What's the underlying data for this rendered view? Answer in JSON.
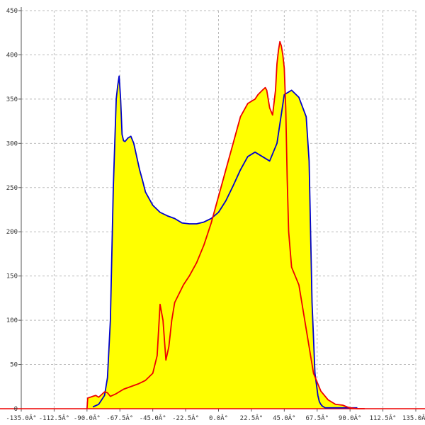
{
  "chart_data": {
    "type": "area",
    "title": "",
    "xlabel": "",
    "ylabel": "",
    "xlim": [
      -135,
      135
    ],
    "ylim": [
      0,
      450
    ],
    "grid": true,
    "x_ticks": [
      -135,
      -112.5,
      -90,
      -67.5,
      -45,
      -22.5,
      0,
      22.5,
      45,
      67.5,
      90,
      112.5,
      135
    ],
    "x_tick_labels": [
      "-135.0Â°",
      "-112.5Â°",
      "-90.0Â°",
      "-67.5Â°",
      "-45.0Â°",
      "-22.5Â°",
      "0.0Â°",
      "22.5Â°",
      "45.0Â°",
      "67.5Â°",
      "90.0Â°",
      "112.5Â°",
      "135.0Â°"
    ],
    "y_ticks": [
      0,
      50,
      100,
      150,
      200,
      250,
      300,
      350,
      400,
      450
    ],
    "y_tick_labels": [
      "0",
      "50",
      "100",
      "150",
      "200",
      "250",
      "300",
      "350",
      "400",
      "450"
    ],
    "fill_color": "#ffff00",
    "series": [
      {
        "color": "#0000cc",
        "x": [
          -86,
          -82,
          -78,
          -76,
          -74,
          -72,
          -70,
          -69,
          -68,
          -67,
          -66,
          -65,
          -64,
          -62,
          -60,
          -58,
          -56,
          -54,
          -52,
          -50,
          -45,
          -40,
          -35,
          -30,
          -25,
          -20,
          -15,
          -10,
          -5,
          0,
          5,
          10,
          15,
          20,
          25,
          30,
          35,
          40,
          45,
          50,
          55,
          60,
          62,
          64,
          66,
          68,
          69,
          70,
          71,
          72,
          73,
          74,
          75,
          76,
          77,
          78,
          79,
          80,
          82,
          85,
          90,
          95
        ],
        "y": [
          2,
          5,
          15,
          35,
          100,
          250,
          350,
          365,
          376,
          350,
          310,
          303,
          302,
          306,
          308,
          300,
          285,
          270,
          258,
          245,
          230,
          222,
          218,
          215,
          210,
          209,
          209,
          211,
          215,
          222,
          235,
          252,
          270,
          285,
          290,
          285,
          280,
          300,
          355,
          360,
          352,
          330,
          280,
          120,
          40,
          15,
          8,
          5,
          3,
          2,
          1,
          1,
          1,
          1,
          1,
          1,
          1,
          1,
          1,
          1,
          1,
          1
        ]
      },
      {
        "color": "#ee0000",
        "x": [
          -90,
          -89.5,
          -86,
          -84,
          -82,
          -80,
          -78,
          -76,
          -74,
          -70,
          -65,
          -60,
          -55,
          -50,
          -45,
          -42,
          -40,
          -38,
          -36,
          -34,
          -32,
          -30,
          -27,
          -24,
          -20,
          -15,
          -10,
          -5,
          0,
          5,
          10,
          15,
          20,
          25,
          27,
          30,
          32,
          33,
          35,
          37,
          39,
          40,
          41,
          42,
          43,
          44,
          45,
          46,
          47,
          48,
          50,
          55,
          60,
          65,
          70,
          75,
          80,
          85,
          88,
          90,
          95,
          100
        ],
        "y": [
          0,
          12,
          14,
          15,
          13,
          16,
          19,
          18,
          14,
          17,
          22,
          25,
          28,
          32,
          40,
          60,
          118,
          100,
          55,
          70,
          100,
          120,
          130,
          140,
          150,
          165,
          185,
          210,
          240,
          270,
          300,
          330,
          345,
          350,
          355,
          360,
          363,
          360,
          340,
          332,
          360,
          390,
          405,
          415,
          410,
          400,
          385,
          340,
          260,
          200,
          160,
          140,
          90,
          40,
          20,
          10,
          5,
          4,
          2,
          1,
          0,
          0
        ]
      }
    ]
  }
}
